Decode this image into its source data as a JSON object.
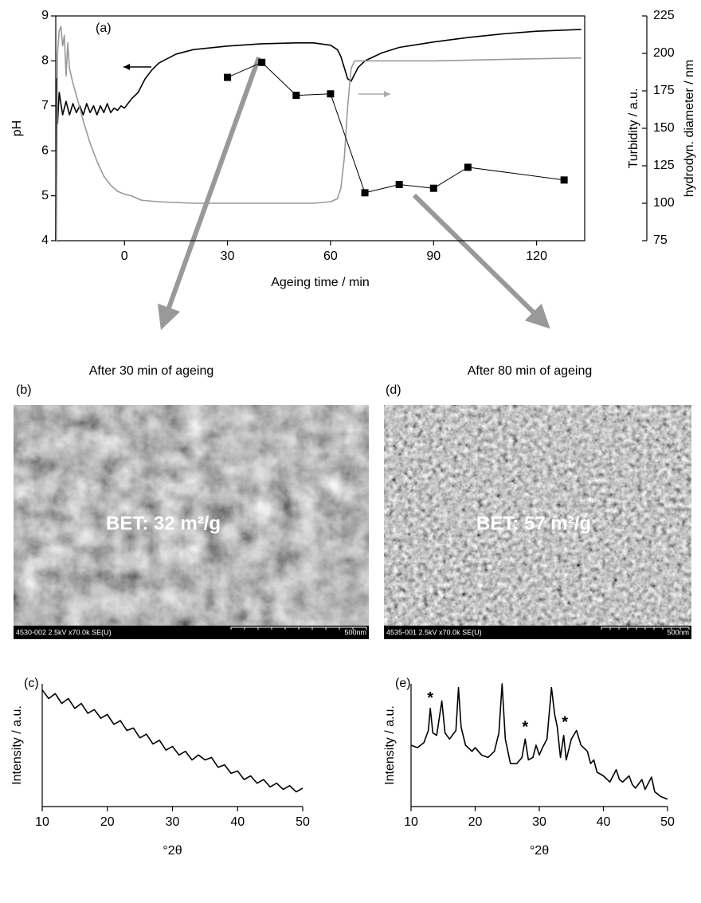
{
  "chart_data": [
    {
      "type": "line",
      "panel": "(a)",
      "xlabel": "Ageing time / min",
      "ylabel": "pH",
      "y2labels": [
        "Turbidity / a.u.",
        "hydrodyn. diameter / nm"
      ],
      "xlim": [
        -20,
        134
      ],
      "xticks": [
        0,
        30,
        60,
        90,
        120
      ],
      "ylim": [
        4,
        9
      ],
      "yticks": [
        4,
        5,
        6,
        7,
        8,
        9
      ],
      "y2lim": [
        75,
        225
      ],
      "y2ticks": [
        75,
        100,
        125,
        150,
        175,
        200,
        225
      ],
      "series": [
        {
          "color": "#000000",
          "x": [
            -20,
            -19.8,
            -19.5,
            -19,
            -18,
            -17,
            -16,
            -15,
            -14,
            -13,
            -12,
            -11,
            -10,
            -9,
            -8,
            -7,
            -6,
            -5,
            -4,
            -3,
            -2,
            -1,
            0,
            2,
            4,
            6,
            8,
            10,
            15,
            20,
            30,
            40,
            50,
            55,
            60,
            62,
            63,
            64,
            65,
            66,
            67,
            68,
            70,
            75,
            80,
            90,
            100,
            110,
            120,
            133
          ],
          "values": [
            4,
            7.6,
            6.6,
            7.3,
            6.8,
            7.1,
            6.8,
            7.05,
            6.85,
            7.0,
            6.8,
            7.05,
            6.85,
            7.0,
            6.8,
            7.0,
            6.85,
            7.05,
            6.85,
            6.95,
            6.9,
            7.0,
            6.95,
            7.15,
            7.3,
            7.6,
            7.8,
            7.95,
            8.15,
            8.25,
            8.33,
            8.38,
            8.4,
            8.4,
            8.35,
            8.25,
            8.1,
            7.85,
            7.6,
            7.55,
            7.7,
            7.85,
            8.0,
            8.18,
            8.3,
            8.42,
            8.52,
            8.6,
            8.66,
            8.7
          ]
        },
        {
          "color": "#999999",
          "axis": "y2",
          "x": [
            -19.8,
            -19.5,
            -19,
            -18.5,
            -18,
            -17.5,
            -17,
            -16.5,
            -16,
            -15,
            -14,
            -12,
            -10,
            -8,
            -6,
            -4,
            -2,
            0,
            2,
            5,
            10,
            20,
            40,
            55,
            60,
            62,
            63,
            64,
            65,
            66,
            67,
            70,
            90,
            110,
            133
          ],
          "values": [
            75,
            200,
            215,
            218,
            205,
            212,
            185,
            207,
            190,
            180,
            172,
            155,
            140,
            128,
            118,
            112,
            108,
            106,
            105,
            102,
            101,
            100,
            100,
            100,
            101,
            103,
            110,
            130,
            165,
            190,
            195,
            195,
            195,
            196,
            197
          ]
        },
        {
          "color": "#000000",
          "axis": "y2",
          "marker": "square",
          "x": [
            30,
            40,
            50,
            60,
            70,
            80,
            90,
            100,
            128
          ],
          "values": [
            184,
            194,
            172,
            173,
            107,
            112.5,
            110,
            124,
            115.5
          ]
        }
      ]
    },
    {
      "type": "line",
      "panel": "(c)",
      "xlabel": "°2θ",
      "ylabel": "Intensity / a.u.",
      "xlim": [
        10,
        50
      ],
      "xticks": [
        10,
        20,
        30,
        40,
        50
      ],
      "ylim": [
        0,
        100
      ],
      "series": [
        {
          "color": "#000000",
          "x": [
            10,
            11,
            12,
            13,
            14,
            15,
            16,
            17,
            18,
            19,
            20,
            21,
            22,
            23,
            24,
            25,
            26,
            27,
            28,
            29,
            30,
            31,
            32,
            33,
            34,
            35,
            36,
            37,
            38,
            39,
            40,
            41,
            42,
            43,
            44,
            45,
            46,
            47,
            48,
            49,
            50
          ],
          "values": [
            95,
            88,
            92,
            84,
            88,
            80,
            84,
            76,
            79,
            72,
            75,
            67,
            70,
            62,
            64,
            56,
            59,
            51,
            54,
            46,
            49,
            42,
            45,
            38,
            42,
            38,
            40,
            32,
            34,
            27,
            29,
            22,
            25,
            19,
            22,
            16,
            19,
            14,
            17,
            12,
            15
          ]
        }
      ]
    },
    {
      "type": "line",
      "panel": "(e)",
      "xlabel": "°2θ",
      "ylabel": "Intensity / a.u.",
      "xlim": [
        10,
        50
      ],
      "xticks": [
        10,
        20,
        30,
        40,
        50
      ],
      "ylim": [
        0,
        100
      ],
      "series": [
        {
          "color": "#000000",
          "x": [
            10,
            11,
            12,
            12.7,
            13,
            13.4,
            14,
            14.8,
            15.3,
            16,
            17,
            17.4,
            17.8,
            18.5,
            19.5,
            20,
            21,
            22,
            23,
            23.7,
            24.2,
            24.7,
            25.5,
            26.5,
            27.3,
            27.8,
            28.3,
            29,
            29.5,
            30,
            30.5,
            31.2,
            31.9,
            32.4,
            32.8,
            33.3,
            33.8,
            34.2,
            35,
            35.8,
            36.5,
            37.5,
            38,
            38.5,
            39,
            40,
            41,
            42,
            42.5,
            43,
            44,
            44.5,
            45,
            46,
            46.5,
            47.5,
            48,
            49,
            50
          ],
          "values": [
            50,
            48,
            52,
            62,
            80,
            60,
            58,
            86,
            60,
            55,
            62,
            97,
            65,
            50,
            45,
            48,
            42,
            40,
            45,
            60,
            100,
            55,
            35,
            35,
            40,
            55,
            38,
            40,
            50,
            42,
            48,
            55,
            97,
            75,
            65,
            40,
            58,
            38,
            55,
            62,
            50,
            45,
            35,
            38,
            28,
            25,
            20,
            30,
            22,
            20,
            25,
            18,
            15,
            22,
            14,
            24,
            12,
            8,
            6
          ]
        }
      ],
      "annotations": [
        {
          "text": "*",
          "x": 13,
          "y": 88
        },
        {
          "text": "*",
          "x": 27.8,
          "y": 64
        },
        {
          "text": "*",
          "x": 34,
          "y": 68
        }
      ]
    }
  ],
  "images": [
    {
      "caption": "After 30 min of ageing",
      "label": "(b)",
      "overlay": "BET: 32 m²/g",
      "info": "4530-002 2.5kV x70.0k SE(U)",
      "scale": "500nm"
    },
    {
      "caption": "After 80 min of ageing",
      "label": "(d)",
      "overlay": "BET: 57 m²/g",
      "info": "4535-001 2.5kV x70.0k SE(U)",
      "scale": "500nm"
    }
  ]
}
